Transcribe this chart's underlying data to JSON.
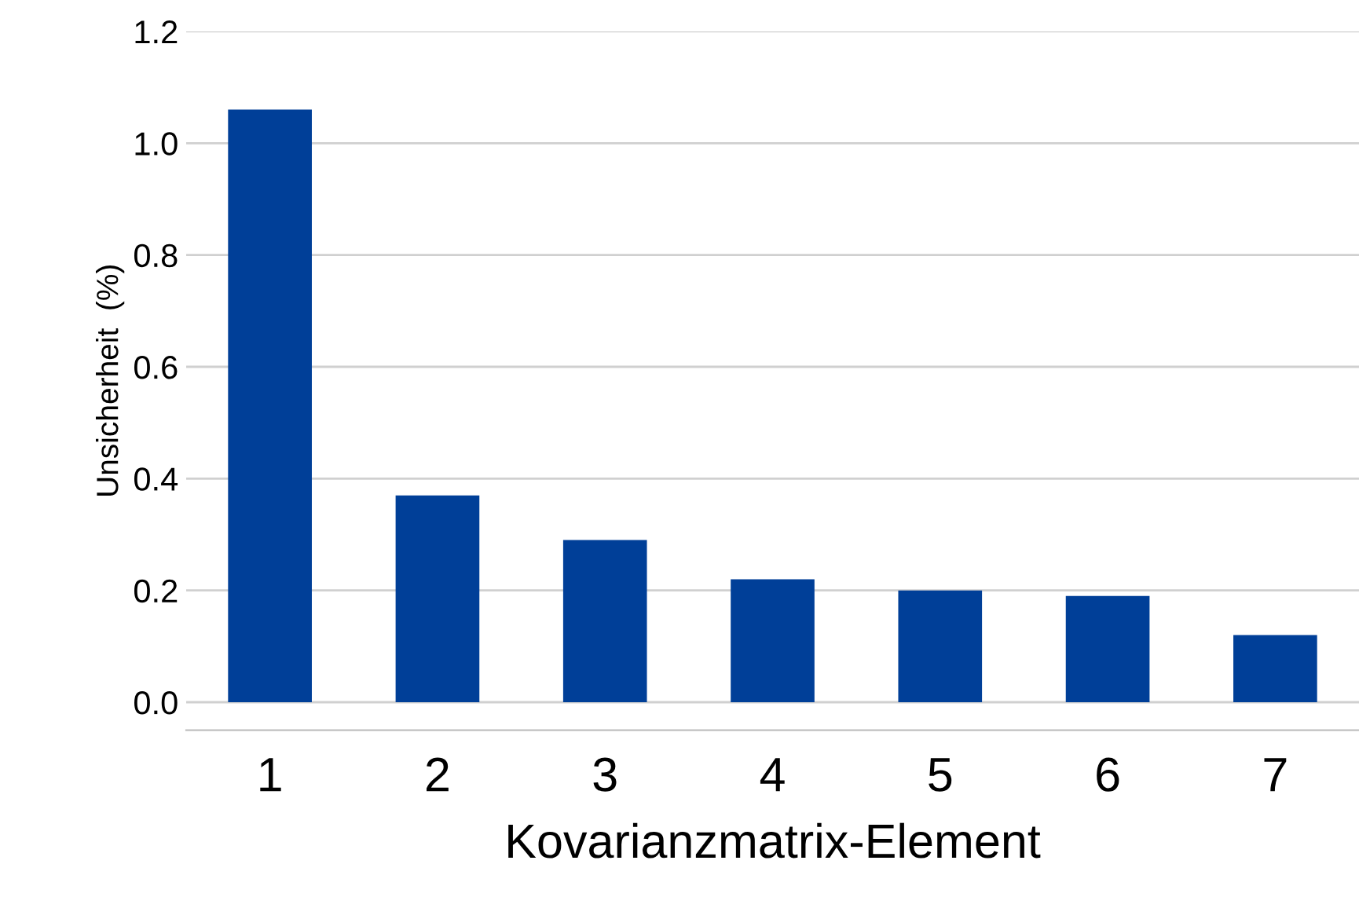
{
  "chart_data": {
    "type": "bar",
    "xlabel": "Kovarianzmatrix-Element",
    "ylabel": "Unsicherheit  (%)",
    "categories": [
      "1",
      "2",
      "3",
      "4",
      "5",
      "6",
      "7"
    ],
    "values": [
      1.06,
      0.37,
      0.29,
      0.22,
      0.2,
      0.19,
      0.12
    ],
    "color": "#003f98",
    "ylim": [
      -0.05,
      1.2
    ],
    "yticks": [
      {
        "value": 0,
        "label": "0.0"
      },
      {
        "value": 0.2,
        "label": "0.2"
      },
      {
        "value": 0.4,
        "label": "0.4"
      },
      {
        "value": 0.6,
        "label": "0.6"
      },
      {
        "value": 0.8,
        "label": "0.8"
      },
      {
        "value": 1.0,
        "label": "1.0"
      },
      {
        "value": 1.2,
        "label": "1.2"
      }
    ],
    "grid": "y",
    "legend": false
  }
}
